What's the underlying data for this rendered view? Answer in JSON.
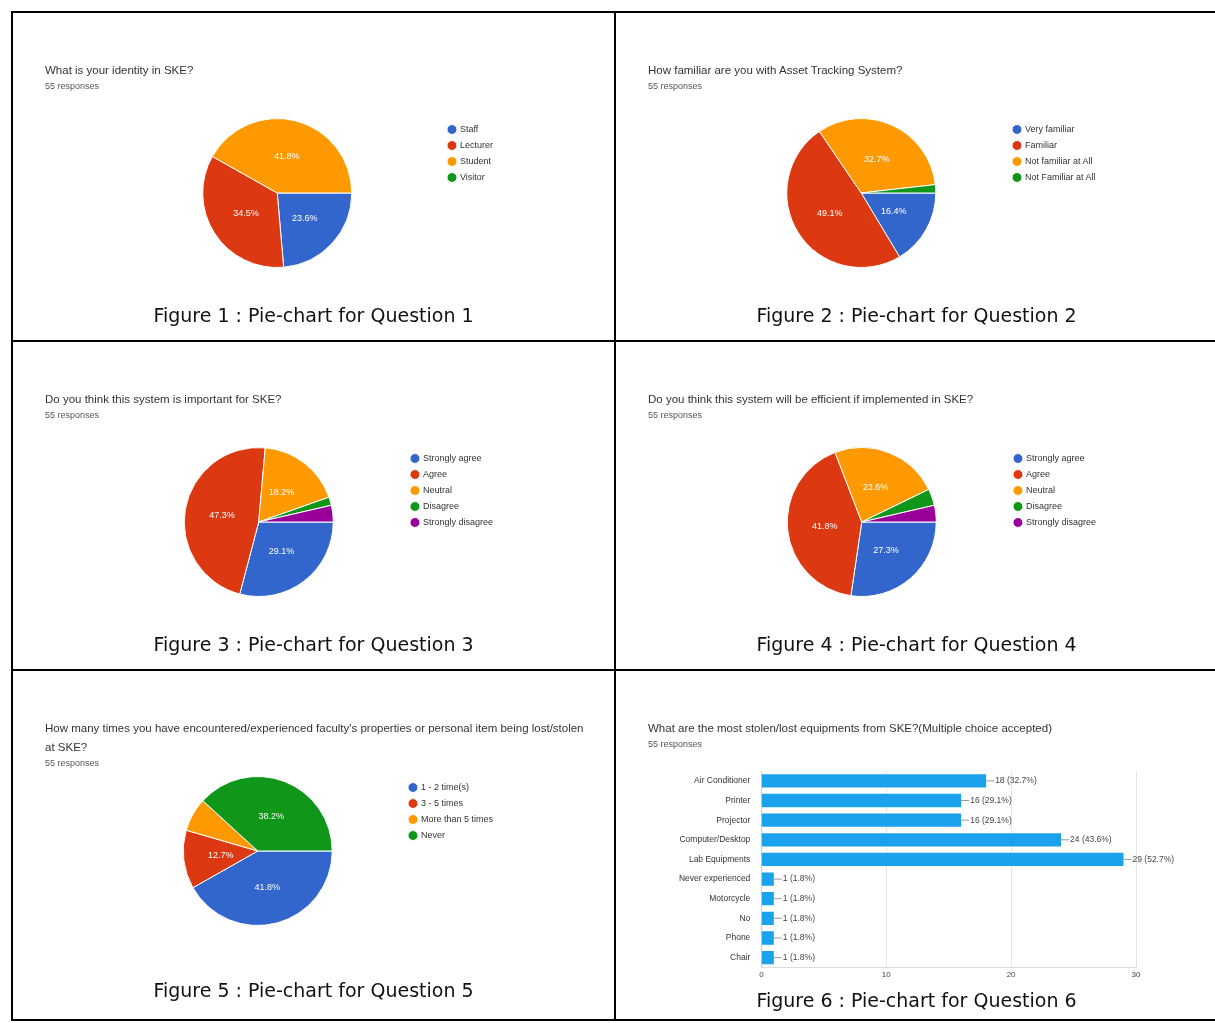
{
  "chart_data": [
    {
      "type": "pie",
      "title": "What is your identity in SKE?",
      "subtitle": "55 responses",
      "categories": [
        "Staff",
        "Lecturer",
        "Student",
        "Visitor"
      ],
      "values": [
        23.6,
        34.5,
        41.8,
        0
      ],
      "colors": [
        "#3366cc",
        "#dc3912",
        "#ff9900",
        "#109618"
      ],
      "value_labels": [
        "23.6%",
        "34.5%",
        "41.8%",
        null
      ],
      "legend": "right",
      "annotations": [
        "Figure 1 : Pie-chart for Question 1"
      ]
    },
    {
      "type": "pie",
      "title": "How familiar are you with Asset Tracking System?",
      "subtitle": "55 responses",
      "categories": [
        "Very familiar",
        "Familiar",
        "Not familiar at All",
        "Not Familiar at All"
      ],
      "values": [
        16.4,
        49.1,
        32.7,
        1.8
      ],
      "colors": [
        "#3366cc",
        "#dc3912",
        "#ff9900",
        "#109618"
      ],
      "value_labels": [
        "16.4%",
        "49.1%",
        "32.7%",
        null
      ],
      "legend": "right",
      "annotations": [
        "Figure 2 : Pie-chart for Question 2"
      ]
    },
    {
      "type": "pie",
      "title": "Do you think this system is important for SKE?",
      "subtitle": "55 responses",
      "categories": [
        "Strongly agree",
        "Agree",
        "Neutral",
        "Disagree",
        "Strongly disagree"
      ],
      "values": [
        29.1,
        47.3,
        18.2,
        1.8,
        3.6
      ],
      "colors": [
        "#3366cc",
        "#dc3912",
        "#ff9900",
        "#109618",
        "#990099"
      ],
      "value_labels": [
        "29.1%",
        "47.3%",
        "18.2%",
        null,
        null
      ],
      "legend": "right",
      "annotations": [
        "Figure 3 : Pie-chart for Question 3"
      ]
    },
    {
      "type": "pie",
      "title": "Do you think this system will be efficient if implemented in SKE?",
      "subtitle": "55 responses",
      "categories": [
        "Strongly agree",
        "Agree",
        "Neutral",
        "Disagree",
        "Strongly disagree"
      ],
      "values": [
        27.3,
        41.8,
        23.6,
        3.6,
        3.6
      ],
      "colors": [
        "#3366cc",
        "#dc3912",
        "#ff9900",
        "#109618",
        "#990099"
      ],
      "value_labels": [
        "27.3%",
        "41.8%",
        "23.6%",
        null,
        null
      ],
      "legend": "right",
      "annotations": [
        "Figure 4 : Pie-chart for Question 4"
      ]
    },
    {
      "type": "pie",
      "title": "How many times you have encountered/experienced faculty's properties or personal item being lost/stolen at SKE?",
      "subtitle": "55 responses",
      "categories": [
        "1 - 2 time(s)",
        "3 - 5 times",
        "More than 5 times",
        "Never"
      ],
      "values": [
        41.8,
        12.7,
        7.3,
        38.2
      ],
      "colors": [
        "#3366cc",
        "#dc3912",
        "#ff9900",
        "#109618"
      ],
      "value_labels": [
        "41.8%",
        "12.7%",
        null,
        "38.2%"
      ],
      "legend": "right",
      "annotations": [
        "Figure 5 : Pie-chart for Question 5"
      ]
    },
    {
      "type": "bar",
      "orientation": "horizontal",
      "title": "What are the most stolen/lost equipments from SKE?(Multiple choice accepted)",
      "subtitle": "55 responses",
      "categories": [
        "Air Conditioner",
        "Printer",
        "Projector",
        "Computer/Desktop",
        "Lab Equipments",
        "Never experienced",
        "Motorcycle",
        "No",
        "Phone",
        "Chair"
      ],
      "values": [
        18,
        16,
        16,
        24,
        29,
        1,
        1,
        1,
        1,
        1
      ],
      "color": "#1aa3ec",
      "value_labels": [
        "18 (32.7%)",
        "16 (29.1%)",
        "16 (29.1%)",
        "24 (43.6%)",
        "29 (52.7%)",
        "1 (1.8%)",
        "1 (1.8%)",
        "1 (1.8%)",
        "1 (1.8%)",
        "1 (1.8%)"
      ],
      "xlim": [
        0,
        30
      ],
      "xticks": [
        0,
        10,
        20,
        30
      ],
      "grid": "x",
      "annotations": [
        "Figure 6 : Pie-chart for Question 6"
      ]
    }
  ]
}
